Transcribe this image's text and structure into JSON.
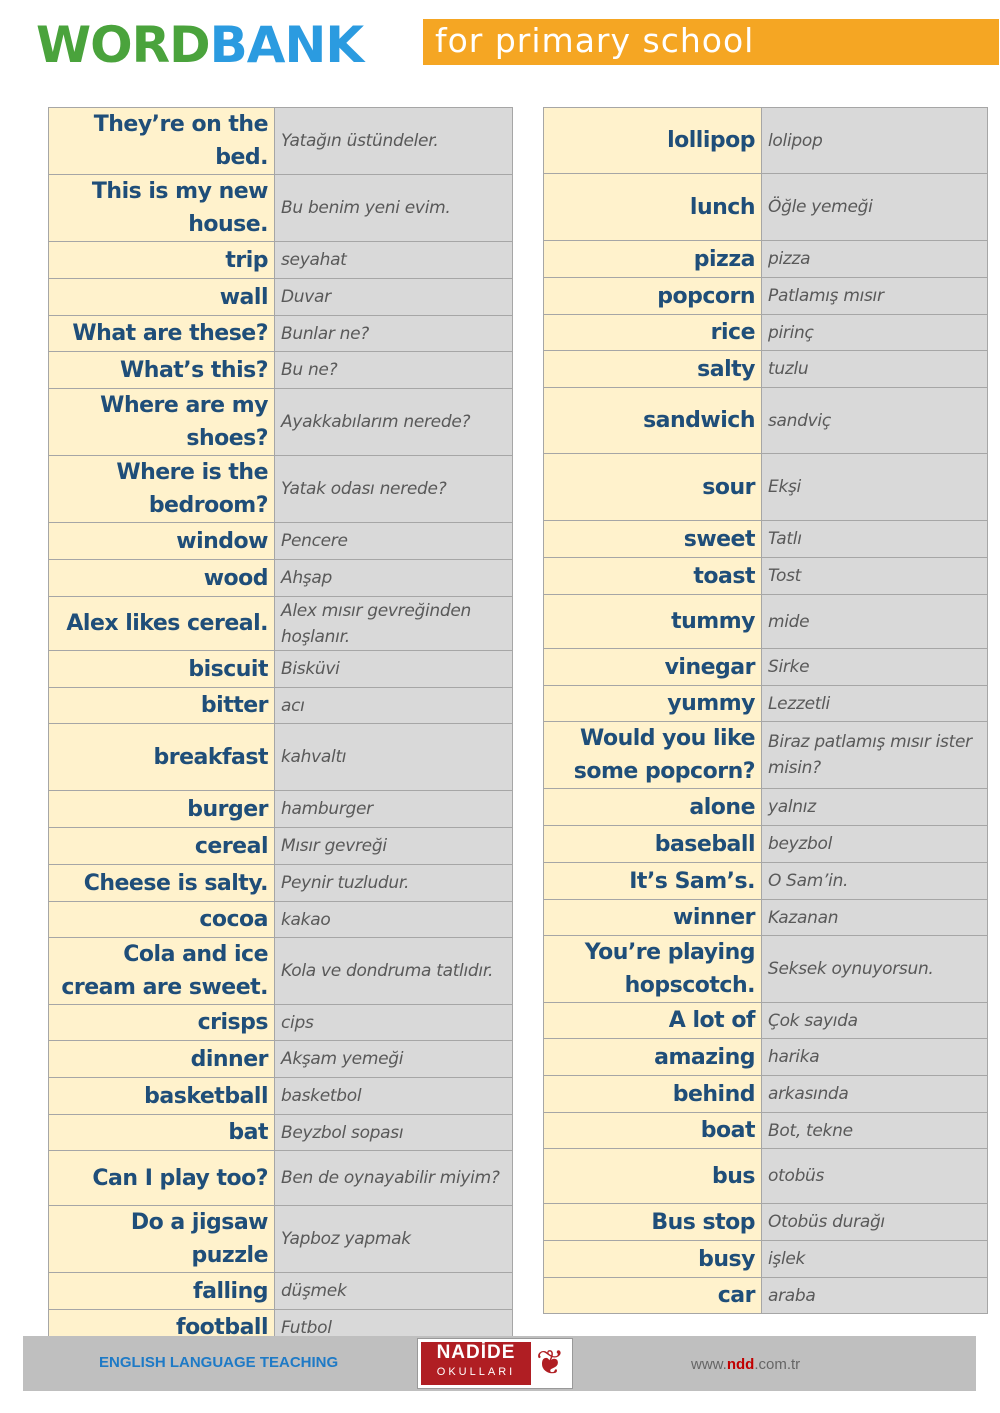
{
  "header": {
    "logo_part1": "WORDBANK",
    "logo_word": "WORD",
    "logo_bank": "BANK",
    "subtitle": "for primary school"
  },
  "left": [
    [
      "They’re on the bed.",
      "Yatağın üstündeler."
    ],
    [
      "This is my new house.",
      "Bu benim yeni evim."
    ],
    [
      "trip",
      "seyahat"
    ],
    [
      "wall",
      "Duvar"
    ],
    [
      "What are these?",
      "Bunlar ne?"
    ],
    [
      "What’s this?",
      "Bu ne?"
    ],
    [
      "Where are my shoes?",
      "Ayakkabılarım nerede?"
    ],
    [
      "Where is the bedroom?",
      "Yatak odası nerede?"
    ],
    [
      "window",
      "Pencere"
    ],
    [
      "wood",
      "Ahşap"
    ],
    [
      "Alex likes cereal.",
      "Alex mısır gevreğinden hoşlanır."
    ],
    [
      "biscuit",
      "Bisküvi"
    ],
    [
      "bitter",
      "acı"
    ],
    [
      "breakfast",
      "kahvaltı"
    ],
    [
      "burger",
      "hamburger"
    ],
    [
      "cereal",
      "Mısır gevreği"
    ],
    [
      "Cheese is salty.",
      "Peynir tuzludur."
    ],
    [
      "cocoa",
      "kakao"
    ],
    [
      "Cola and ice cream are sweet.",
      "Kola ve dondruma tatlıdır."
    ],
    [
      "crisps",
      "cips"
    ],
    [
      "dinner",
      "Akşam yemeği"
    ],
    [
      "basketball",
      "basketbol"
    ],
    [
      "bat",
      "Beyzbol sopası"
    ],
    [
      "Can I play too?",
      "Ben de oynayabilir miyim?"
    ],
    [
      "Do a jigsaw puzzle",
      "Yapboz yapmak"
    ],
    [
      "falling",
      "düşmek"
    ],
    [
      "football",
      "Futbol"
    ]
  ],
  "right": [
    [
      "lollipop",
      "lolipop"
    ],
    [
      "lunch",
      "Öğle yemeği"
    ],
    [
      "pizza",
      "pizza"
    ],
    [
      "popcorn",
      "Patlamış mısır"
    ],
    [
      "rice",
      "pirinç"
    ],
    [
      "salty",
      "tuzlu"
    ],
    [
      "sandwich",
      "sandviç"
    ],
    [
      "sour",
      "Ekşi"
    ],
    [
      "sweet",
      "Tatlı"
    ],
    [
      "toast",
      "Tost"
    ],
    [
      "tummy",
      "mide"
    ],
    [
      "vinegar",
      "Sirke"
    ],
    [
      "yummy",
      "Lezzetli"
    ],
    [
      "Would you like some popcorn?",
      "Biraz patlamış mısır ister misin?"
    ],
    [
      "alone",
      "yalnız"
    ],
    [
      "baseball",
      "beyzbol"
    ],
    [
      "It’s Sam’s.",
      "O Sam’in."
    ],
    [
      "winner",
      "Kazanan"
    ],
    [
      "You’re playing hopscotch.",
      "Seksek oynuyorsun."
    ],
    [
      "A lot of",
      "Çok sayıda"
    ],
    [
      "amazing",
      "harika"
    ],
    [
      "behind",
      "arkasında"
    ],
    [
      "boat",
      "Bot, tekne"
    ],
    [
      "bus",
      "otobüs"
    ],
    [
      "Bus stop",
      "Otobüs durağı"
    ],
    [
      "busy",
      "işlek"
    ],
    [
      "car",
      "araba"
    ]
  ],
  "footer": {
    "left_text": "ENGLISH LANGUAGE TEACHING",
    "logo_name": "NADİDE",
    "logo_sub": "OKULLARI",
    "url_prefix": "www.",
    "url_brand": "ndd",
    "url_suffix": ".com.tr"
  }
}
